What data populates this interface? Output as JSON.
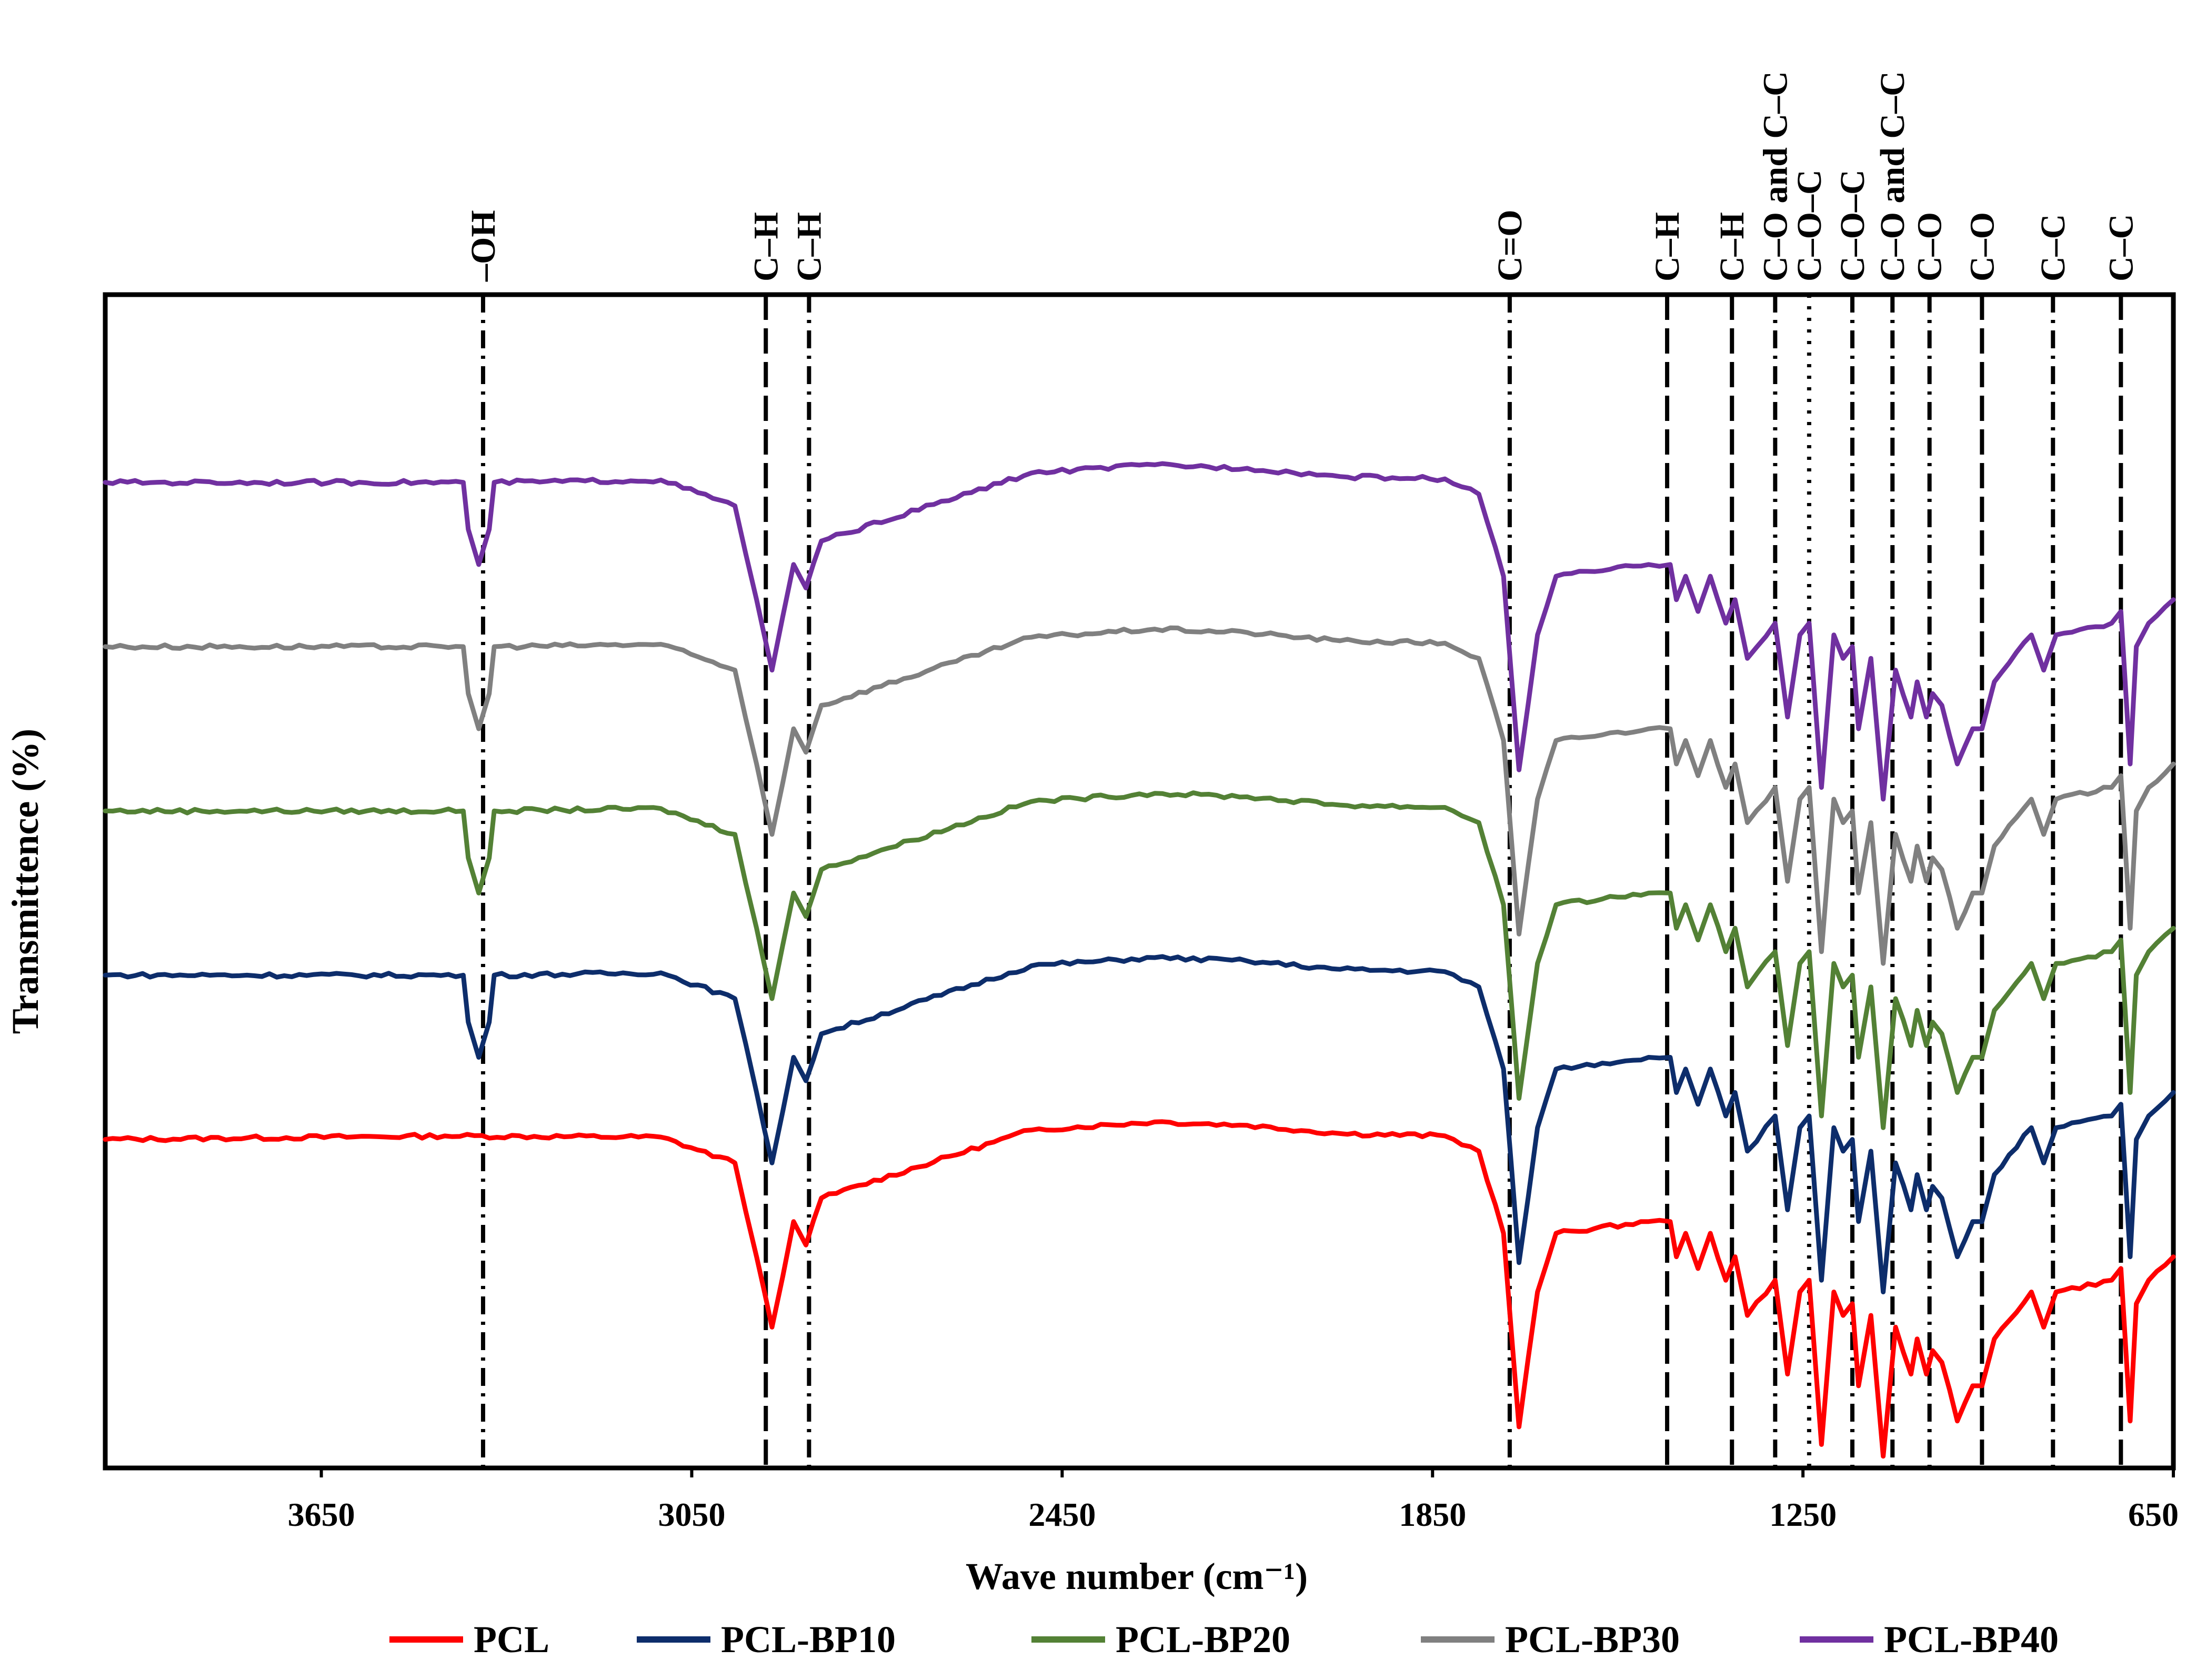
{
  "chart_data": {
    "type": "line",
    "title": "",
    "xlabel": "Wave number (cm⁻¹)",
    "ylabel": "Transmittence (%)",
    "x_axis": {
      "reversed": true,
      "xlim": [
        4000,
        650
      ],
      "ticks": [
        3650,
        3050,
        2450,
        1850,
        1250,
        650
      ],
      "tick_labels": [
        "3650",
        "3050",
        "2450",
        "1850",
        "1250",
        "650"
      ]
    },
    "y_axis": {
      "ticks": [],
      "ylim": [
        0,
        100
      ]
    },
    "legend": {
      "position": "bottom"
    },
    "series": [
      {
        "name": "PCL",
        "color": "#ff0000",
        "baseline": 28,
        "has_oh": false,
        "x": [
          4000,
          3450,
          3100,
          2980,
          2945,
          2920,
          2885,
          2865,
          2840,
          2500,
          2300,
          2150,
          2000,
          1830,
          1775,
          1735,
          1710,
          1680,
          1650,
          1500,
          1465,
          1455,
          1440,
          1420,
          1400,
          1375,
          1360,
          1340,
          1295,
          1275,
          1255,
          1240,
          1220,
          1200,
          1185,
          1170,
          1160,
          1140,
          1120,
          1100,
          1075,
          1065,
          1050,
          1040,
          1025,
          1000,
          975,
          960,
          940,
          880,
          860,
          840,
          750,
          735,
          720,
          710,
          690,
          650
        ],
        "y": [
          28,
          28.3,
          28.2,
          26,
          18,
          12,
          21,
          19,
          23,
          28.8,
          29.5,
          29.2,
          28.5,
          28.3,
          27,
          20,
          3.5,
          15,
          20,
          21,
          21,
          18,
          20,
          17,
          20,
          16,
          18,
          13,
          16,
          8,
          15,
          16,
          2,
          15,
          13,
          14,
          7,
          13,
          1,
          12,
          8,
          11,
          8,
          10,
          9,
          4,
          7,
          7,
          11,
          15,
          12,
          15,
          16,
          17,
          4,
          14,
          16,
          18
        ]
      },
      {
        "name": "PCL-BP10",
        "color": "#0d2d6b",
        "baseline": 42,
        "has_oh": true,
        "x": [
          4000,
          3450,
          3100,
          2980,
          2945,
          2920,
          2885,
          2865,
          2840,
          2500,
          2300,
          2150,
          2000,
          1830,
          1775,
          1735,
          1710,
          1680,
          1650,
          1500,
          1465,
          1455,
          1440,
          1420,
          1400,
          1375,
          1360,
          1340,
          1295,
          1275,
          1255,
          1240,
          1220,
          1200,
          1185,
          1170,
          1160,
          1140,
          1120,
          1100,
          1075,
          1065,
          1050,
          1040,
          1025,
          1000,
          975,
          960,
          940,
          880,
          860,
          840,
          750,
          735,
          720,
          710,
          690,
          650
        ],
        "y": [
          42,
          42.3,
          42.2,
          40,
          32,
          26,
          35,
          33,
          37,
          42.8,
          43.5,
          43.2,
          42.5,
          42.3,
          41,
          34,
          17.5,
          29,
          34,
          35,
          35,
          32,
          34,
          31,
          34,
          30,
          32,
          27,
          30,
          22,
          29,
          30,
          16,
          29,
          27,
          28,
          21,
          27,
          15,
          26,
          22,
          25,
          22,
          24,
          23,
          18,
          21,
          21,
          25,
          29,
          26,
          29,
          30,
          31,
          18,
          28,
          30,
          32
        ]
      },
      {
        "name": "PCL-BP20",
        "color": "#538135",
        "baseline": 56,
        "has_oh": true,
        "x": [
          4000,
          3450,
          3100,
          2980,
          2945,
          2920,
          2885,
          2865,
          2840,
          2500,
          2300,
          2150,
          2000,
          1830,
          1775,
          1735,
          1710,
          1680,
          1650,
          1500,
          1465,
          1455,
          1440,
          1420,
          1400,
          1375,
          1360,
          1340,
          1295,
          1275,
          1255,
          1240,
          1220,
          1200,
          1185,
          1170,
          1160,
          1140,
          1120,
          1100,
          1075,
          1065,
          1050,
          1040,
          1025,
          1000,
          975,
          960,
          940,
          880,
          860,
          840,
          750,
          735,
          720,
          710,
          690,
          650
        ],
        "y": [
          56,
          56.3,
          56.2,
          54,
          46,
          40,
          49,
          47,
          51,
          56.8,
          57.5,
          57.2,
          56.5,
          56.3,
          55,
          48,
          31.5,
          43,
          48,
          49,
          49,
          46,
          48,
          45,
          48,
          44,
          46,
          41,
          44,
          36,
          43,
          44,
          30,
          43,
          41,
          42,
          35,
          41,
          29,
          40,
          36,
          39,
          36,
          38,
          37,
          32,
          35,
          35,
          39,
          43,
          40,
          43,
          44,
          45,
          32,
          42,
          44,
          46
        ]
      },
      {
        "name": "PCL-BP30",
        "color": "#808080",
        "baseline": 70,
        "has_oh": true,
        "x": [
          4000,
          3450,
          3100,
          2980,
          2945,
          2920,
          2885,
          2865,
          2840,
          2500,
          2300,
          2150,
          2000,
          1830,
          1775,
          1735,
          1710,
          1680,
          1650,
          1500,
          1465,
          1455,
          1440,
          1420,
          1400,
          1375,
          1360,
          1340,
          1295,
          1275,
          1255,
          1240,
          1220,
          1200,
          1185,
          1170,
          1160,
          1140,
          1120,
          1100,
          1075,
          1065,
          1050,
          1040,
          1025,
          1000,
          975,
          960,
          940,
          880,
          860,
          840,
          750,
          735,
          720,
          710,
          690,
          650
        ],
        "y": [
          70,
          70.3,
          70.2,
          68,
          60,
          54,
          63,
          61,
          65,
          70.8,
          71.5,
          71.2,
          70.5,
          70.3,
          69,
          62,
          45.5,
          57,
          62,
          63,
          63,
          60,
          62,
          59,
          62,
          58,
          60,
          55,
          58,
          50,
          57,
          58,
          44,
          57,
          55,
          56,
          49,
          55,
          43,
          54,
          50,
          53,
          50,
          52,
          51,
          46,
          49,
          49,
          53,
          57,
          54,
          57,
          58,
          59,
          46,
          56,
          58,
          60
        ]
      },
      {
        "name": "PCL-BP40",
        "color": "#7030a0",
        "baseline": 84,
        "has_oh": true,
        "x": [
          4000,
          3450,
          3100,
          2980,
          2945,
          2920,
          2885,
          2865,
          2840,
          2500,
          2300,
          2150,
          2000,
          1830,
          1775,
          1735,
          1710,
          1680,
          1650,
          1500,
          1465,
          1455,
          1440,
          1420,
          1400,
          1375,
          1360,
          1340,
          1295,
          1275,
          1255,
          1240,
          1220,
          1200,
          1185,
          1170,
          1160,
          1140,
          1120,
          1100,
          1075,
          1065,
          1050,
          1040,
          1025,
          1000,
          975,
          960,
          940,
          880,
          860,
          840,
          750,
          735,
          720,
          710,
          690,
          650
        ],
        "y": [
          84,
          84.3,
          84.2,
          82,
          74,
          68,
          77,
          75,
          79,
          84.8,
          85.5,
          85.2,
          84.5,
          84.3,
          83,
          76,
          59.5,
          71,
          76,
          77,
          77,
          74,
          76,
          73,
          76,
          72,
          74,
          69,
          72,
          64,
          71,
          72,
          58,
          71,
          69,
          70,
          63,
          69,
          57,
          68,
          64,
          67,
          64,
          66,
          65,
          60,
          63,
          63,
          67,
          71,
          68,
          71,
          72,
          73,
          60,
          70,
          72,
          74
        ]
      }
    ],
    "annotations": [
      {
        "label": "–OH",
        "x": 3388,
        "style": "dashdot"
      },
      {
        "label": "C–H",
        "x": 2930,
        "style": "dash"
      },
      {
        "label": "C–H",
        "x": 2860,
        "style": "dashdot"
      },
      {
        "label": "C=O",
        "x": 1725,
        "style": "dashdot"
      },
      {
        "label": "C–H",
        "x": 1470,
        "style": "dash"
      },
      {
        "label": "C–H",
        "x": 1365,
        "style": "dash"
      },
      {
        "label": "C–O and C–C",
        "x": 1295,
        "style": "dashdot"
      },
      {
        "label": "C–O–C",
        "x": 1240,
        "style": "dot"
      },
      {
        "label": "C–O–C",
        "x": 1170,
        "style": "dashdot"
      },
      {
        "label": "C–O and C–C",
        "x": 1105,
        "style": "dashdot"
      },
      {
        "label": "C–O",
        "x": 1045,
        "style": "dashdot"
      },
      {
        "label": "C–O",
        "x": 960,
        "style": "dash"
      },
      {
        "label": "C–C",
        "x": 845,
        "style": "dashdot"
      },
      {
        "label": "C–C",
        "x": 735,
        "style": "dash"
      }
    ]
  }
}
